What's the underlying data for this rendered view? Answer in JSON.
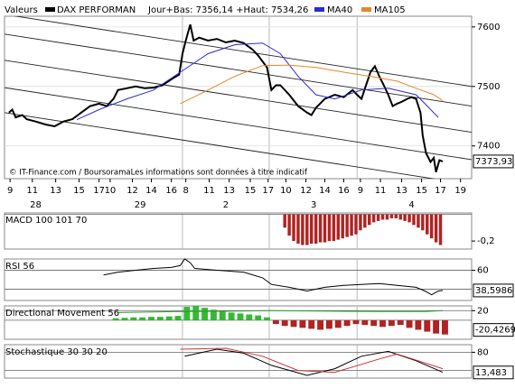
{
  "chart_data": [
    {
      "type": "line",
      "title": "Valeurs",
      "subtitle": "Jour+Bas: 7356,14 +Haut: 7534,26",
      "source": "© IT-Finance.com / BoursoramaLes informations sont données à titre indicatif",
      "xlim": [
        0,
        42
      ],
      "ylim": [
        7345,
        7618
      ],
      "yticks": [
        7400,
        7500,
        7600
      ],
      "grid": true,
      "xticks": [
        {
          "value": 0.5,
          "label": "9"
        },
        {
          "value": 2.5,
          "label": "11"
        },
        {
          "value": 4.6,
          "label": "13"
        },
        {
          "value": 6.7,
          "label": "15"
        },
        {
          "value": 8.5,
          "label": "17"
        },
        {
          "value": 9.5,
          "label": "10"
        },
        {
          "value": 11.5,
          "label": "12"
        },
        {
          "value": 13.2,
          "label": "14"
        },
        {
          "value": 15.0,
          "label": "16"
        },
        {
          "value": 16.3,
          "label": "8"
        },
        {
          "value": 18.4,
          "label": "11"
        },
        {
          "value": 20.2,
          "label": "13"
        },
        {
          "value": 22.1,
          "label": "15"
        },
        {
          "value": 23.7,
          "label": "17"
        },
        {
          "value": 25.3,
          "label": "10"
        },
        {
          "value": 27.1,
          "label": "12"
        },
        {
          "value": 28.8,
          "label": "14"
        },
        {
          "value": 30.5,
          "label": "16"
        },
        {
          "value": 32.0,
          "label": "9"
        },
        {
          "value": 33.8,
          "label": "11"
        },
        {
          "value": 35.7,
          "label": "13"
        },
        {
          "value": 37.5,
          "label": "15"
        },
        {
          "value": 39.2,
          "label": "17"
        },
        {
          "value": 41.0,
          "label": "19"
        }
      ],
      "day_labels": [
        {
          "value": 2.8,
          "label": "28"
        },
        {
          "value": 12.2,
          "label": "29"
        },
        {
          "value": 19.9,
          "label": "2"
        },
        {
          "value": 27.8,
          "label": "3"
        },
        {
          "value": 36.6,
          "label": "4"
        }
      ],
      "day_separators": [
        16.0,
        23.8,
        31.7
      ],
      "channel_x": [
        0,
        42
      ],
      "channel": [
        [
          7621,
          7500
        ],
        [
          7588,
          7467
        ],
        [
          7544,
          7423
        ],
        [
          7498,
          7377
        ],
        [
          7456,
          7335
        ]
      ],
      "channel_color": "#222222",
      "last_value": 7373.93,
      "last_value_label": "7373,93",
      "series": [
        {
          "name": "DAX PERFORMAN",
          "color": "#000000",
          "x": [
            0.4,
            0.7,
            1.0,
            1.6,
            2.0,
            2.8,
            3.7,
            4.5,
            5.3,
            6.1,
            6.9,
            7.7,
            8.5,
            9.2,
            9.8,
            10.2,
            11.0,
            11.8,
            12.6,
            13.4,
            14.2,
            15.0,
            15.7,
            16.0,
            16.3,
            16.7,
            17.0,
            17.5,
            18.3,
            19.1,
            19.9,
            20.7,
            21.5,
            22.3,
            22.8,
            23.2,
            23.6,
            24.0,
            24.4,
            24.8,
            25.6,
            26.4,
            27.2,
            27.6,
            28.0,
            28.8,
            29.7,
            30.5,
            31.3,
            31.7,
            32.1,
            32.5,
            32.9,
            33.3,
            33.7,
            34.1,
            34.5,
            34.9,
            35.3,
            35.7,
            36.2,
            36.6,
            37.0,
            37.4,
            37.6,
            37.9,
            38.3,
            38.6,
            38.8,
            39.1,
            39.4
          ],
          "values": [
            7456,
            7461,
            7448,
            7452,
            7445,
            7441,
            7436,
            7433,
            7441,
            7445,
            7456,
            7467,
            7471,
            7467,
            7479,
            7494,
            7497,
            7500,
            7497,
            7498,
            7502,
            7512,
            7520,
            7555,
            7577,
            7604,
            7577,
            7582,
            7577,
            7580,
            7574,
            7577,
            7573,
            7562,
            7552,
            7542,
            7532,
            7494,
            7502,
            7502,
            7486,
            7467,
            7456,
            7452,
            7464,
            7479,
            7486,
            7482,
            7494,
            7486,
            7479,
            7502,
            7524,
            7534,
            7517,
            7502,
            7486,
            7467,
            7471,
            7474,
            7479,
            7482,
            7479,
            7456,
            7418,
            7388,
            7373,
            7380,
            7356,
            7376,
            7374
          ]
        },
        {
          "name": "MA40",
          "color": "#2b2bd6",
          "x": [
            6.5,
            8.5,
            11.0,
            13.4,
            15.8,
            18.3,
            20.7,
            23.2,
            24.8,
            26.4,
            28.0,
            29.7,
            32.1,
            34.5,
            37.0,
            37.8,
            39.0
          ],
          "values": [
            7444,
            7461,
            7479,
            7494,
            7524,
            7555,
            7570,
            7573,
            7555,
            7517,
            7486,
            7479,
            7494,
            7497,
            7486,
            7471,
            7448
          ]
        },
        {
          "name": "MA105",
          "color": "#e8862a",
          "x": [
            15.8,
            18.3,
            20.7,
            23.2,
            25.6,
            28.0,
            30.5,
            32.9,
            35.3,
            37.0,
            38.6,
            39.4
          ],
          "values": [
            7471,
            7494,
            7517,
            7535,
            7536,
            7532,
            7524,
            7517,
            7509,
            7497,
            7486,
            7476
          ]
        }
      ]
    },
    {
      "type": "bar",
      "title": "MACD 100 101 70",
      "xlim": [
        0,
        42
      ],
      "ylim": [
        -0.26,
        0.01
      ],
      "yticks": [
        {
          "value": -0.2,
          "label": "-0,2"
        }
      ],
      "levels": [
        0
      ],
      "color": "#b22222",
      "x": [
        25.2,
        25.6,
        26.0,
        26.4,
        26.8,
        27.2,
        27.6,
        28.0,
        28.4,
        28.8,
        29.2,
        29.6,
        30.0,
        30.4,
        30.8,
        31.2,
        31.6,
        32.0,
        32.4,
        32.8,
        33.2,
        33.6,
        34.0,
        34.4,
        34.8,
        35.2,
        35.6,
        36.0,
        36.4,
        36.8,
        37.2,
        37.6,
        38.0,
        38.4,
        38.8,
        39.2
      ],
      "values": [
        -0.1,
        -0.16,
        -0.2,
        -0.22,
        -0.23,
        -0.23,
        -0.22,
        -0.22,
        -0.21,
        -0.21,
        -0.2,
        -0.2,
        -0.19,
        -0.18,
        -0.17,
        -0.16,
        -0.15,
        -0.12,
        -0.1,
        -0.08,
        -0.06,
        -0.05,
        -0.04,
        -0.04,
        -0.03,
        -0.03,
        -0.04,
        -0.05,
        -0.06,
        -0.08,
        -0.1,
        -0.12,
        -0.15,
        -0.18,
        -0.21,
        -0.23
      ]
    },
    {
      "type": "line",
      "title": "RSI 56",
      "xlim": [
        0,
        42
      ],
      "ylim": [
        28,
        72
      ],
      "yticks": [
        60
      ],
      "grid": true,
      "levels": [
        40
      ],
      "last_value": 38.5986,
      "last_value_label": "38,5986",
      "series": [
        {
          "color": "#000000",
          "x": [
            8.9,
            10.2,
            11.8,
            13.4,
            15.0,
            15.8,
            16.2,
            16.7,
            17.1,
            19.1,
            21.5,
            23.2,
            24.0,
            25.6,
            27.2,
            28.8,
            30.5,
            32.1,
            33.7,
            35.3,
            37.0,
            37.8,
            38.4,
            39.0,
            39.4
          ],
          "values": [
            55,
            58,
            60,
            62,
            63,
            65,
            72,
            68,
            62,
            60,
            58,
            52,
            45,
            42,
            38,
            42,
            44,
            45,
            46,
            44,
            42,
            38,
            34,
            38,
            38.6
          ]
        }
      ]
    },
    {
      "type": "combo",
      "title": "Directional Movement 56",
      "xlim": [
        0,
        42
      ],
      "ylim": [
        -40,
        30
      ],
      "yticks": [
        20
      ],
      "grid": true,
      "levels": [
        0
      ],
      "up_color": "#33bb33",
      "down_color": "#b22222",
      "last_value": -20.4269,
      "last_value_label": "-20,4269",
      "x": [
        10.0,
        10.8,
        11.6,
        12.4,
        13.2,
        14.0,
        14.8,
        15.6,
        16.4,
        17.2,
        18.0,
        18.8,
        19.6,
        20.4,
        21.2,
        22.0,
        22.8,
        23.6,
        24.4,
        25.2,
        26.0,
        26.8,
        27.6,
        28.4,
        29.2,
        30.0,
        30.8,
        31.6,
        32.4,
        33.2,
        34.0,
        34.8,
        35.6,
        36.4,
        37.2,
        38.0,
        38.8,
        39.6
      ],
      "values": [
        4,
        5,
        6,
        6,
        7,
        7,
        8,
        9,
        28,
        30,
        26,
        22,
        18,
        16,
        14,
        12,
        10,
        6,
        -8,
        -12,
        -14,
        -16,
        -18,
        -20,
        -18,
        -16,
        -12,
        -8,
        -10,
        -12,
        -14,
        -12,
        -10,
        -16,
        -20,
        -24,
        -28,
        -30
      ],
      "series": [
        {
          "color": "#2a9a2a",
          "x": [
            10.2,
            15.8,
            20.7,
            23.9,
            28.8,
            33.7,
            37.8,
            39.4
          ],
          "values": [
            16,
            18,
            19,
            20,
            19,
            18,
            18,
            20
          ]
        }
      ]
    },
    {
      "type": "line",
      "title": "Stochastique 30 30 20",
      "xlim": [
        0,
        42
      ],
      "ylim": [
        -5,
        105
      ],
      "yticks": [
        80
      ],
      "grid": true,
      "levels": [
        20
      ],
      "last_value": 13.483,
      "last_value_label": "13,483",
      "series": [
        {
          "color": "#000000",
          "x": [
            16.2,
            19.1,
            21.5,
            24.0,
            27.2,
            29.7,
            32.1,
            34.5,
            37.0,
            39.4
          ],
          "values": [
            67,
            90,
            77,
            37,
            4,
            26,
            67,
            83,
            52,
            14
          ]
        },
        {
          "color": "#d03030",
          "x": [
            15.8,
            19.9,
            23.2,
            26.4,
            29.7,
            33.7,
            35.3,
            37.8,
            39.4
          ],
          "values": [
            90,
            93,
            67,
            20,
            14,
            58,
            74,
            45,
            26
          ]
        }
      ]
    }
  ]
}
